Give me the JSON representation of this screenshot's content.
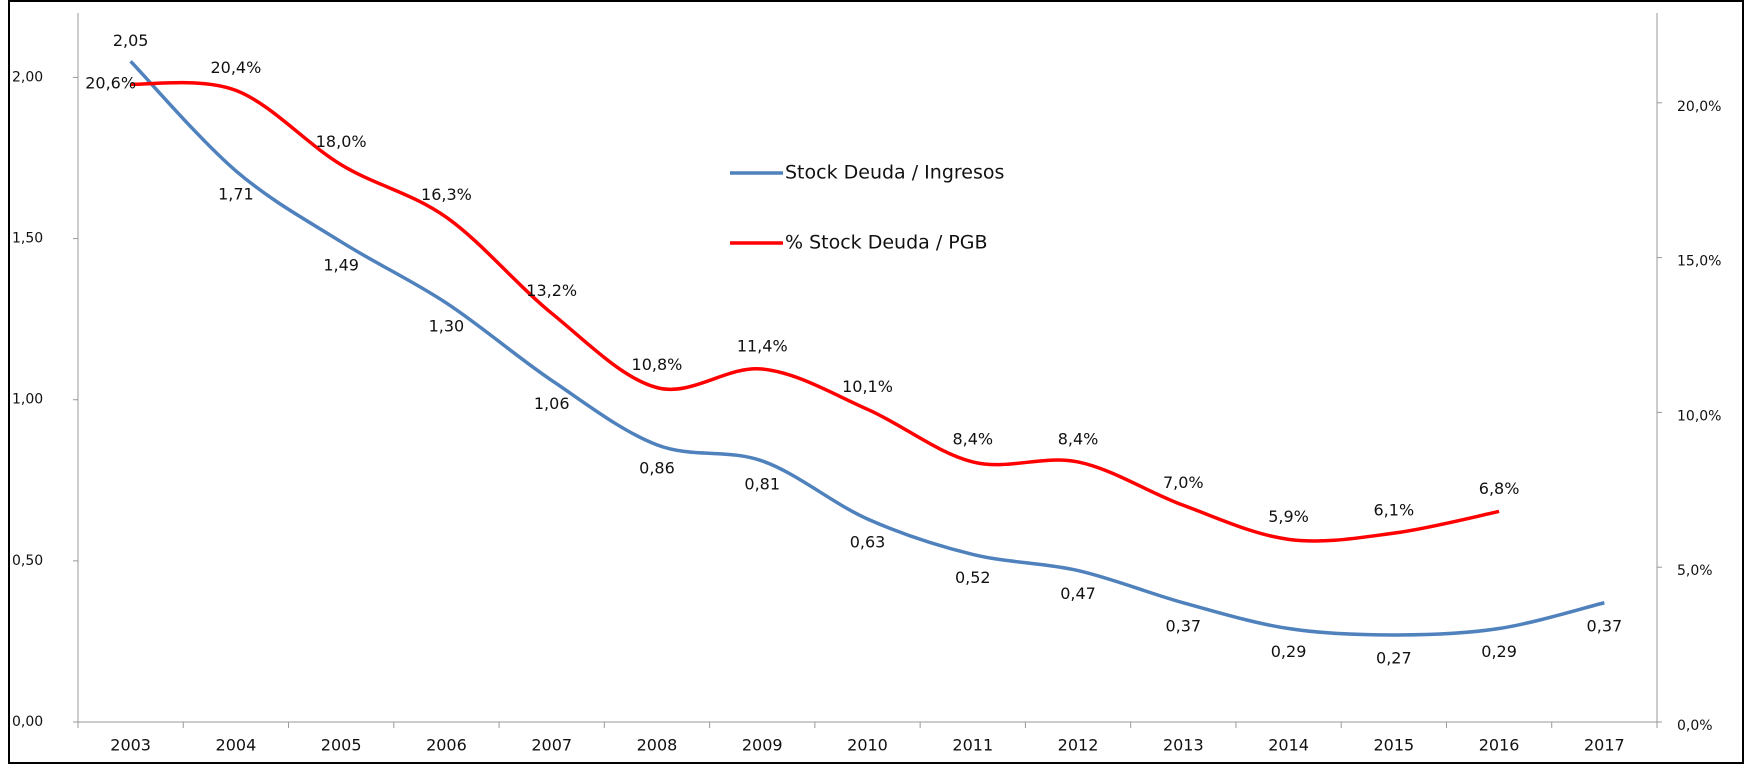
{
  "chart_data": {
    "type": "line",
    "categories": [
      "2003",
      "2004",
      "2005",
      "2006",
      "2007",
      "2008",
      "2009",
      "2010",
      "2011",
      "2012",
      "2013",
      "2014",
      "2015",
      "2016",
      "2017"
    ],
    "series": [
      {
        "name": "Stock Deuda / Ingresos",
        "color": "#4f81bd",
        "axis": "y",
        "values": [
          2.05,
          1.71,
          1.49,
          1.3,
          1.06,
          0.86,
          0.81,
          0.63,
          0.52,
          0.47,
          0.37,
          0.29,
          0.27,
          0.29,
          0.37
        ],
        "value_labels": [
          "2,05",
          "1,71",
          "1,49",
          "1,30",
          "1,06",
          "0,86",
          "0,81",
          "0,63",
          "0,52",
          "0,47",
          "0,37",
          "0,29",
          "0,27",
          "0,29",
          "0,37"
        ]
      },
      {
        "name": "% Stock Deuda / PGB",
        "color": "#ff0000",
        "axis": "y2",
        "values": [
          20.6,
          20.4,
          18.0,
          16.3,
          13.2,
          10.8,
          11.4,
          10.1,
          8.4,
          8.4,
          7.0,
          5.9,
          6.1,
          6.8,
          null
        ],
        "value_labels": [
          "20,6%",
          "20,4%",
          "18,0%",
          "16,3%",
          "13,2%",
          "10,8%",
          "11,4%",
          "10,1%",
          "8,4%",
          "8,4%",
          "7,0%",
          "5,9%",
          "6,1%",
          "6,8%",
          null
        ]
      }
    ],
    "ylim": [
      0,
      2.2
    ],
    "yticks": [
      {
        "value": 0,
        "label": "0,00"
      },
      {
        "value": 0.5,
        "label": "0,50"
      },
      {
        "value": 1,
        "label": "1,00"
      },
      {
        "value": 1.5,
        "label": "1,50"
      },
      {
        "value": 2,
        "label": "2,00"
      }
    ],
    "y2lim": [
      0,
      22.9
    ],
    "y2ticks": [
      {
        "value": 0,
        "label": "0,0%"
      },
      {
        "value": 5,
        "label": "5,0%"
      },
      {
        "value": 10,
        "label": "10,0%"
      },
      {
        "value": 15,
        "label": "15,0%"
      },
      {
        "value": 20,
        "label": "20,0%"
      }
    ],
    "grid": false,
    "legend": "top"
  }
}
